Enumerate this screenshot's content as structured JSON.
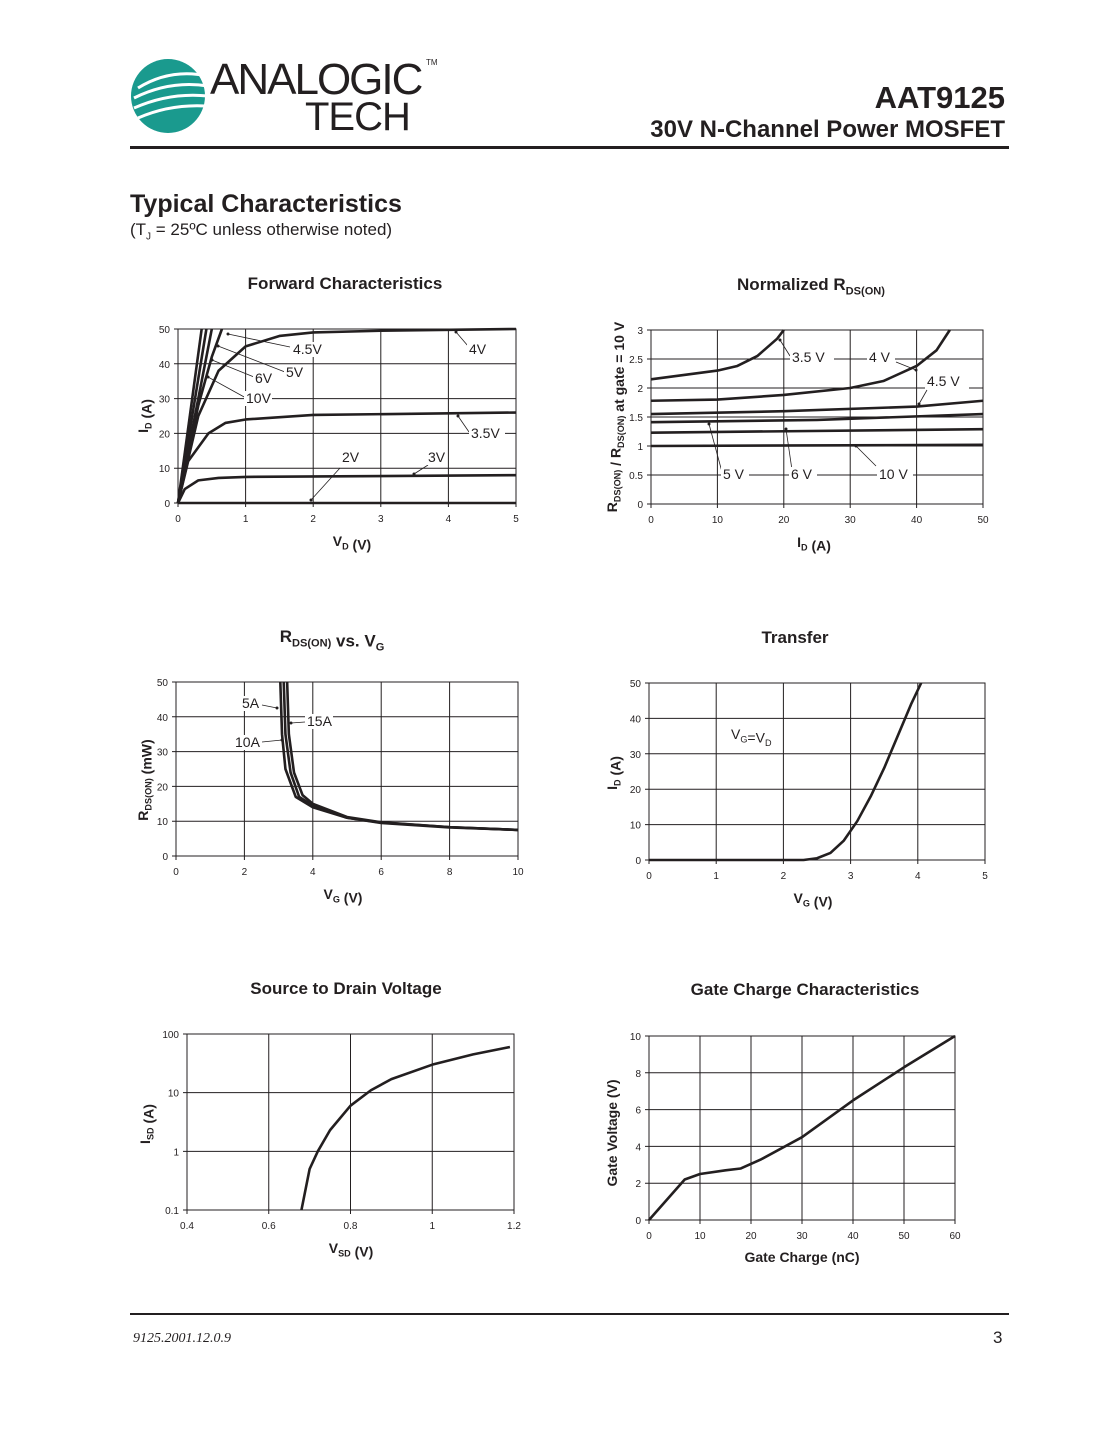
{
  "header": {
    "logo": {
      "line1": "ANALOGIC",
      "line2": "TECH",
      "tm": "TM",
      "color": "#1a9a8e"
    },
    "part_number": "AAT9125",
    "description": "30V N-Channel Power MOSFET"
  },
  "section": {
    "title": "Typical Characteristics",
    "subtitle_pre": "(T",
    "subtitle_sub": "J",
    "subtitle_post": " = 25ºC unless otherwise noted)"
  },
  "footer": {
    "code": "9125.2001.12.0.9",
    "page": "3"
  },
  "chart_data": [
    {
      "type": "line",
      "title": [
        {
          "t": "Forward Characteristics"
        }
      ],
      "xlabel": [
        {
          "t": "V"
        },
        {
          "t": "D",
          "sub": true
        },
        {
          "t": " (V)"
        }
      ],
      "ylabel": [
        {
          "t": "I"
        },
        {
          "t": "D",
          "sub": true
        },
        {
          "t": " (A)"
        }
      ],
      "xlim": [
        0,
        5
      ],
      "ylim": [
        0,
        50
      ],
      "yscale": "linear",
      "xticks": [
        0,
        1,
        2,
        3,
        4,
        5
      ],
      "yticks": [
        0,
        10,
        20,
        30,
        40,
        50
      ],
      "grid": true,
      "series": [
        {
          "name": "10V",
          "points": [
            [
              0,
              0
            ],
            [
              0.35,
              50
            ]
          ]
        },
        {
          "name": "6V",
          "points": [
            [
              0,
              0
            ],
            [
              0.42,
              50
            ]
          ]
        },
        {
          "name": "5V",
          "points": [
            [
              0,
              0
            ],
            [
              0.5,
              50
            ]
          ]
        },
        {
          "name": "4.5V",
          "points": [
            [
              0,
              0
            ],
            [
              0.3,
              28
            ],
            [
              0.5,
              42
            ],
            [
              0.65,
              50
            ]
          ]
        },
        {
          "name": "4V",
          "points": [
            [
              0,
              0
            ],
            [
              0.3,
              25
            ],
            [
              0.6,
              38
            ],
            [
              1,
              45
            ],
            [
              1.5,
              48
            ],
            [
              2,
              49
            ],
            [
              3,
              49.5
            ],
            [
              5,
              50
            ]
          ]
        },
        {
          "name": "3.5V",
          "points": [
            [
              0,
              0
            ],
            [
              0.15,
              12
            ],
            [
              0.45,
              20
            ],
            [
              0.7,
              23
            ],
            [
              1,
              24
            ],
            [
              2,
              25.3
            ],
            [
              5,
              26
            ]
          ]
        },
        {
          "name": "3V",
          "points": [
            [
              0,
              0
            ],
            [
              0.1,
              4
            ],
            [
              0.3,
              6.5
            ],
            [
              0.6,
              7.2
            ],
            [
              1,
              7.5
            ],
            [
              5,
              8
            ]
          ]
        },
        {
          "name": "2V",
          "points": [
            [
              0,
              0
            ],
            [
              5,
              0
            ]
          ]
        }
      ],
      "annotations": [
        "4.5V",
        "5V",
        "6V",
        "10V",
        "4V",
        "3.5V",
        "2V",
        "3V"
      ]
    },
    {
      "type": "line",
      "title": [
        {
          "t": "Normalized R"
        },
        {
          "t": "DS(ON)",
          "sub": true
        }
      ],
      "xlabel": [
        {
          "t": "I"
        },
        {
          "t": "D",
          "sub": true
        },
        {
          "t": " (A)"
        }
      ],
      "ylabel": [
        {
          "t": "R"
        },
        {
          "t": "DS(ON)",
          "sub": true
        },
        {
          "t": " / R"
        },
        {
          "t": "DS(ON)",
          "sub": true
        },
        {
          "t": " at gate = 10 V"
        }
      ],
      "xlim": [
        0,
        50
      ],
      "ylim": [
        0,
        3
      ],
      "yscale": "linear",
      "xticks": [
        0,
        10,
        20,
        30,
        40,
        50
      ],
      "yticks": [
        0,
        0.5,
        1,
        1.5,
        2,
        2.5,
        3
      ],
      "grid": true,
      "series": [
        {
          "name": "3.5 V",
          "points": [
            [
              0,
              2.15
            ],
            [
              10,
              2.3
            ],
            [
              13,
              2.38
            ],
            [
              16,
              2.55
            ],
            [
              19,
              2.85
            ],
            [
              20,
              3
            ]
          ]
        },
        {
          "name": "4 V",
          "points": [
            [
              0,
              1.78
            ],
            [
              10,
              1.8
            ],
            [
              20,
              1.88
            ],
            [
              30,
              2.0
            ],
            [
              35,
              2.12
            ],
            [
              40,
              2.38
            ],
            [
              43,
              2.65
            ],
            [
              45,
              3
            ]
          ]
        },
        {
          "name": "4.5 V",
          "points": [
            [
              0,
              1.55
            ],
            [
              20,
              1.6
            ],
            [
              40,
              1.68
            ],
            [
              50,
              1.78
            ]
          ]
        },
        {
          "name": "5 V",
          "points": [
            [
              0,
              1.41
            ],
            [
              25,
              1.45
            ],
            [
              50,
              1.55
            ]
          ]
        },
        {
          "name": "6 V",
          "points": [
            [
              0,
              1.23
            ],
            [
              50,
              1.29
            ]
          ]
        },
        {
          "name": "10 V",
          "points": [
            [
              0,
              1.0
            ],
            [
              50,
              1.02
            ]
          ]
        }
      ],
      "annotations": [
        "3.5 V",
        "4 V",
        "4.5 V",
        "5 V",
        "6 V",
        "10 V"
      ]
    },
    {
      "type": "line",
      "title": [
        {
          "t": "R"
        },
        {
          "t": "DS(ON)",
          "sub": true
        },
        {
          "t": " vs. V"
        },
        {
          "t": "G",
          "sub": true
        }
      ],
      "xlabel": [
        {
          "t": "V"
        },
        {
          "t": "G",
          "sub": true
        },
        {
          "t": " (V)"
        }
      ],
      "ylabel": [
        {
          "t": "R"
        },
        {
          "t": "DS(ON)",
          "sub": true
        },
        {
          "t": " (mW)"
        }
      ],
      "xlim": [
        0,
        10
      ],
      "ylim": [
        0,
        50
      ],
      "yscale": "linear",
      "xticks": [
        0,
        2,
        4,
        6,
        8,
        10
      ],
      "yticks": [
        0,
        10,
        20,
        30,
        40,
        50
      ],
      "grid": true,
      "series": [
        {
          "name": "5A",
          "points": [
            [
              3.05,
              50
            ],
            [
              3.1,
              35
            ],
            [
              3.2,
              25
            ],
            [
              3.5,
              17
            ],
            [
              4,
              14
            ],
            [
              5,
              11
            ],
            [
              6,
              9.5
            ],
            [
              8,
              8.2
            ],
            [
              10,
              7.5
            ]
          ]
        },
        {
          "name": "10A",
          "points": [
            [
              3.15,
              50
            ],
            [
              3.2,
              35
            ],
            [
              3.35,
              24
            ],
            [
              3.6,
              17
            ],
            [
              4,
              14.5
            ],
            [
              5,
              11
            ],
            [
              6,
              9.6
            ],
            [
              8,
              8.3
            ],
            [
              10,
              7.5
            ]
          ]
        },
        {
          "name": "15A",
          "points": [
            [
              3.25,
              50
            ],
            [
              3.3,
              35
            ],
            [
              3.45,
              24
            ],
            [
              3.7,
              17.5
            ],
            [
              4,
              15
            ],
            [
              5,
              11.2
            ],
            [
              6,
              9.7
            ],
            [
              8,
              8.3
            ],
            [
              10,
              7.5
            ]
          ]
        }
      ],
      "annotations": [
        "5A",
        "10A",
        "15A"
      ]
    },
    {
      "type": "line",
      "title": [
        {
          "t": "Transfer"
        }
      ],
      "xlabel": [
        {
          "t": "V"
        },
        {
          "t": "G",
          "sub": true
        },
        {
          "t": " (V)"
        }
      ],
      "ylabel": [
        {
          "t": "I"
        },
        {
          "t": "D",
          "sub": true
        },
        {
          "t": " (A)"
        }
      ],
      "xlim": [
        0,
        5
      ],
      "ylim": [
        0,
        50
      ],
      "yscale": "linear",
      "xticks": [
        0,
        1,
        2,
        3,
        4,
        5
      ],
      "yticks": [
        0,
        10,
        20,
        30,
        40,
        50
      ],
      "grid": true,
      "series": [
        {
          "points": [
            [
              0,
              0
            ],
            [
              2.3,
              0
            ],
            [
              2.5,
              0.5
            ],
            [
              2.7,
              2
            ],
            [
              2.9,
              5.5
            ],
            [
              3.1,
              11
            ],
            [
              3.3,
              18
            ],
            [
              3.5,
              26
            ],
            [
              3.7,
              35
            ],
            [
              3.9,
              44
            ],
            [
              4.05,
              50
            ]
          ]
        }
      ],
      "annotations": [
        [
          {
            "t": "V"
          },
          {
            "t": "G",
            "sub": true
          },
          {
            "t": "=V"
          },
          {
            "t": "D",
            "sub": true
          }
        ]
      ]
    },
    {
      "type": "line",
      "title": [
        {
          "t": "Source to Drain Voltage"
        }
      ],
      "xlabel": [
        {
          "t": "V"
        },
        {
          "t": "SD",
          "sub": true
        },
        {
          "t": " (V)"
        }
      ],
      "ylabel": [
        {
          "t": "I"
        },
        {
          "t": "SD",
          "sub": true
        },
        {
          "t": " (A)"
        }
      ],
      "xlim": [
        0.4,
        1.2
      ],
      "ylim": [
        0.1,
        100
      ],
      "yscale": "log",
      "xticks": [
        0.4,
        0.6,
        0.8,
        1,
        1.2
      ],
      "yticks": [
        0.1,
        1,
        10,
        100
      ],
      "grid": true,
      "series": [
        {
          "points": [
            [
              0.68,
              0.1
            ],
            [
              0.7,
              0.5
            ],
            [
              0.72,
              1
            ],
            [
              0.75,
              2.3
            ],
            [
              0.8,
              6
            ],
            [
              0.85,
              11
            ],
            [
              0.9,
              17
            ],
            [
              1,
              30
            ],
            [
              1.1,
              45
            ],
            [
              1.19,
              60
            ]
          ]
        }
      ],
      "annotations": []
    },
    {
      "type": "line",
      "title": [
        {
          "t": "Gate Charge Characteristics"
        }
      ],
      "xlabel": [
        {
          "t": "Gate Charge (nC)"
        }
      ],
      "ylabel": [
        {
          "t": "Gate Voltage (V)"
        }
      ],
      "xlim": [
        0,
        60
      ],
      "ylim": [
        0,
        10
      ],
      "yscale": "linear",
      "xticks": [
        0,
        10,
        20,
        30,
        40,
        50,
        60
      ],
      "yticks": [
        0,
        2,
        4,
        6,
        8,
        10
      ],
      "grid": true,
      "series": [
        {
          "points": [
            [
              0,
              0
            ],
            [
              7,
              2.2
            ],
            [
              10,
              2.5
            ],
            [
              15,
              2.7
            ],
            [
              18,
              2.8
            ],
            [
              22,
              3.3
            ],
            [
              30,
              4.5
            ],
            [
              40,
              6.5
            ],
            [
              50,
              8.3
            ],
            [
              60,
              10
            ]
          ]
        }
      ],
      "annotations": []
    }
  ]
}
